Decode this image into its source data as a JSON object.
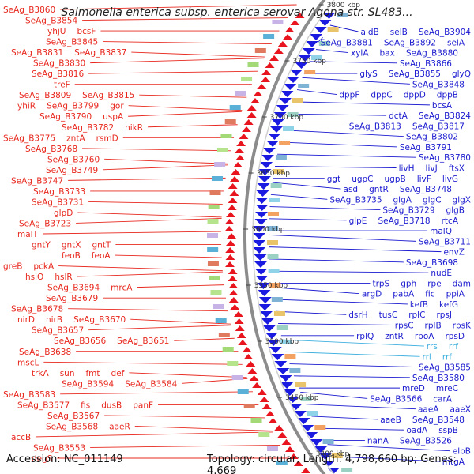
{
  "title": "Salmonella enterica subsp. enterica serovar Agona str. SL483...",
  "footer": {
    "accession": "Accession: NC_011149",
    "topology": "Topology: circular; Length: 4,798,660 bp; Genes: 4,669"
  },
  "colors": {
    "left_labels": "#e8281e",
    "right_labels": "#1a1ad0",
    "rna_labels": "#3fb0e0",
    "forward_strand": "#e8141e",
    "reverse_strand": "#1a1ae0",
    "backbone": "#8c8c8c"
  },
  "scale_ticks": [
    "3800 kbp",
    "3750 kbp",
    "3700 kbp",
    "3650 kbp",
    "3600 kbp",
    "3550 kbp",
    "3500 kbp",
    "3450 kbp",
    "3400 kbp"
  ],
  "left_genes": [
    {
      "text": "SeAg_B3860"
    },
    {
      "text": "SeAg_B3854"
    },
    {
      "text": "yhjU"
    },
    {
      "text": "bcsF"
    },
    {
      "text": "SeAg_B3845"
    },
    {
      "text": "SeAg_B3831"
    },
    {
      "text": "SeAg_B3837"
    },
    {
      "text": "SeAg_B3830"
    },
    {
      "text": "SeAg_B3816"
    },
    {
      "text": "treF"
    },
    {
      "text": "SeAg_B3809"
    },
    {
      "text": "SeAg_B3815"
    },
    {
      "text": "yhiR"
    },
    {
      "text": "SeAg_B3799"
    },
    {
      "text": "gor"
    },
    {
      "text": "SeAg_B3790"
    },
    {
      "text": "uspA"
    },
    {
      "text": "SeAg_B3782"
    },
    {
      "text": "nikR"
    },
    {
      "text": "SeAg_B3775"
    },
    {
      "text": "zntA"
    },
    {
      "text": "rsmD"
    },
    {
      "text": "SeAg_B3768"
    },
    {
      "text": "SeAg_B3760"
    },
    {
      "text": "SeAg_B3749"
    },
    {
      "text": "SeAg_B3747"
    },
    {
      "text": "SeAg_B3733"
    },
    {
      "text": "SeAg_B3731"
    },
    {
      "text": "glpD"
    },
    {
      "text": "SeAg_B3723"
    },
    {
      "text": "malT"
    },
    {
      "text": "gntY"
    },
    {
      "text": "gntX"
    },
    {
      "text": "gntT"
    },
    {
      "text": "feoB"
    },
    {
      "text": "feoA"
    },
    {
      "text": "greB"
    },
    {
      "text": "pckA"
    },
    {
      "text": "hslO"
    },
    {
      "text": "hslR"
    },
    {
      "text": "SeAg_B3694"
    },
    {
      "text": "mrcA"
    },
    {
      "text": "SeAg_B3679"
    },
    {
      "text": "SeAg_B3678"
    },
    {
      "text": "nirD"
    },
    {
      "text": "nirB"
    },
    {
      "text": "SeAg_B3670"
    },
    {
      "text": "SeAg_B3657"
    },
    {
      "text": "SeAg_B3656"
    },
    {
      "text": "SeAg_B3651"
    },
    {
      "text": "SeAg_B3638"
    },
    {
      "text": "mscL"
    },
    {
      "text": "trkA"
    },
    {
      "text": "sun"
    },
    {
      "text": "fmt"
    },
    {
      "text": "def"
    },
    {
      "text": "SeAg_B3594"
    },
    {
      "text": "SeAg_B3584"
    },
    {
      "text": "SeAg_B3583"
    },
    {
      "text": "SeAg_B3577"
    },
    {
      "text": "fis"
    },
    {
      "text": "dusB"
    },
    {
      "text": "panF"
    },
    {
      "text": "SeAg_B3567"
    },
    {
      "text": "SeAg_B3568"
    },
    {
      "text": "aaeR"
    },
    {
      "text": "accB"
    },
    {
      "text": "SeAg_B3553"
    },
    {
      "text": "degS"
    }
  ],
  "right_genes": [
    {
      "text": "aldB",
      "rna": false
    },
    {
      "text": "selB",
      "rna": false
    },
    {
      "text": "SeAg_B3904",
      "rna": false
    },
    {
      "text": "SeAg_B3881",
      "rna": false
    },
    {
      "text": "SeAg_B3892",
      "rna": false
    },
    {
      "text": "selA",
      "rna": false
    },
    {
      "text": "xylA",
      "rna": false
    },
    {
      "text": "bax",
      "rna": false
    },
    {
      "text": "SeAg_B3880",
      "rna": false
    },
    {
      "text": "SeAg_B3866",
      "rna": false
    },
    {
      "text": "glyS",
      "rna": false
    },
    {
      "text": "SeAg_B3855",
      "rna": false
    },
    {
      "text": "glyQ",
      "rna": false
    },
    {
      "text": "SeAg_B3848",
      "rna": false
    },
    {
      "text": "dppF",
      "rna": false
    },
    {
      "text": "dppC",
      "rna": false
    },
    {
      "text": "dppD",
      "rna": false
    },
    {
      "text": "dppB",
      "rna": false
    },
    {
      "text": "bcsA",
      "rna": false
    },
    {
      "text": "dctA",
      "rna": false
    },
    {
      "text": "SeAg_B3824",
      "rna": false
    },
    {
      "text": "SeAg_B3813",
      "rna": false
    },
    {
      "text": "SeAg_B3817",
      "rna": false
    },
    {
      "text": "SeAg_B3802",
      "rna": false
    },
    {
      "text": "SeAg_B3791",
      "rna": false
    },
    {
      "text": "SeAg_B3780",
      "rna": false
    },
    {
      "text": "livH",
      "rna": false
    },
    {
      "text": "livJ",
      "rna": false
    },
    {
      "text": "ftsX",
      "rna": false
    },
    {
      "text": "ggt",
      "rna": false
    },
    {
      "text": "ugpC",
      "rna": false
    },
    {
      "text": "ugpB",
      "rna": false
    },
    {
      "text": "livF",
      "rna": false
    },
    {
      "text": "livG",
      "rna": false
    },
    {
      "text": "asd",
      "rna": false
    },
    {
      "text": "gntR",
      "rna": false
    },
    {
      "text": "SeAg_B3748",
      "rna": false
    },
    {
      "text": "SeAg_B3735",
      "rna": false
    },
    {
      "text": "glgA",
      "rna": false
    },
    {
      "text": "glgC",
      "rna": false
    },
    {
      "text": "glgX",
      "rna": false
    },
    {
      "text": "SeAg_B3729",
      "rna": false
    },
    {
      "text": "glgB",
      "rna": false
    },
    {
      "text": "glpE",
      "rna": false
    },
    {
      "text": "SeAg_B3718",
      "rna": false
    },
    {
      "text": "rtcA",
      "rna": false
    },
    {
      "text": "malQ",
      "rna": false
    },
    {
      "text": "SeAg_B3711",
      "rna": false
    },
    {
      "text": "envZ",
      "rna": false
    },
    {
      "text": "SeAg_B3698",
      "rna": false
    },
    {
      "text": "nudE",
      "rna": false
    },
    {
      "text": "trpS",
      "rna": false
    },
    {
      "text": "gph",
      "rna": false
    },
    {
      "text": "rpe",
      "rna": false
    },
    {
      "text": "dam",
      "rna": false
    },
    {
      "text": "argD",
      "rna": false
    },
    {
      "text": "pabA",
      "rna": false
    },
    {
      "text": "fic",
      "rna": false
    },
    {
      "text": "ppiA",
      "rna": false
    },
    {
      "text": "kefB",
      "rna": false
    },
    {
      "text": "kefG",
      "rna": false
    },
    {
      "text": "dsrH",
      "rna": false
    },
    {
      "text": "tusC",
      "rna": false
    },
    {
      "text": "rplC",
      "rna": false
    },
    {
      "text": "rpsJ",
      "rna": false
    },
    {
      "text": "rpsC",
      "rna": false
    },
    {
      "text": "rplB",
      "rna": false
    },
    {
      "text": "rpsK",
      "rna": false
    },
    {
      "text": "rplQ",
      "rna": false
    },
    {
      "text": "zntR",
      "rna": false
    },
    {
      "text": "rpoA",
      "rna": false
    },
    {
      "text": "rpsD",
      "rna": false
    },
    {
      "text": "rrs",
      "rna": true
    },
    {
      "text": "rrf",
      "rna": true
    },
    {
      "text": "rrl",
      "rna": true
    },
    {
      "text": "rrf",
      "rna": true
    },
    {
      "text": "SeAg_B3585",
      "rna": false
    },
    {
      "text": "SeAg_B3580",
      "rna": false
    },
    {
      "text": "mreD",
      "rna": false
    },
    {
      "text": "mreC",
      "rna": false
    },
    {
      "text": "SeAg_B3566",
      "rna": false
    },
    {
      "text": "carA",
      "rna": false
    },
    {
      "text": "aaeA",
      "rna": false
    },
    {
      "text": "aaeX",
      "rna": false
    },
    {
      "text": "aaeB",
      "rna": false
    },
    {
      "text": "SeAg_B3548",
      "rna": false
    },
    {
      "text": "oadA",
      "rna": false
    },
    {
      "text": "sspB",
      "rna": false
    },
    {
      "text": "nanA",
      "rna": false
    },
    {
      "text": "SeAg_B3526",
      "rna": false
    },
    {
      "text": "elbB",
      "rna": false
    },
    {
      "text": "mtgA",
      "rna": false
    }
  ]
}
